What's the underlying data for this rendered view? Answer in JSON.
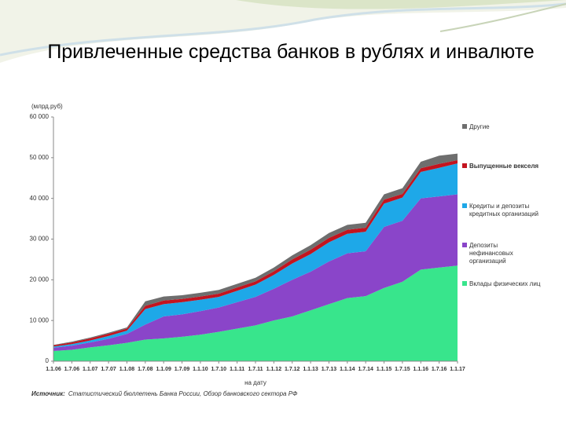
{
  "chart_data": {
    "type": "stacked-area",
    "title": "Привлеченные средства банков в рублях и инвалюте",
    "y_unit": "(млрд.руб)",
    "x_label": "на дату",
    "source_label": "Источник:",
    "source": "Статистический бюллетень Банка России, Обзор банковского сектора РФ",
    "categories": [
      "1.1.06",
      "1.7.06",
      "1.1.07",
      "1.7.07",
      "1.1.08",
      "1.7.08",
      "1.1.09",
      "1.7.09",
      "1.1.10",
      "1.7.10",
      "1.1.11",
      "1.7.11",
      "1.1.12",
      "1.7.12",
      "1.1.13",
      "1.7.13",
      "1.1.14",
      "1.7.14",
      "1.1.15",
      "1.7.15",
      "1.1.16",
      "1.7.16",
      "1.1.17"
    ],
    "ylim": [
      0,
      60000
    ],
    "yticks": [
      0,
      {
        "value": 10000,
        "label": "10 000"
      },
      {
        "value": 20000,
        "label": "20 000"
      },
      {
        "value": 30000,
        "label": "30 000"
      },
      {
        "value": 40000,
        "label": "40 000"
      },
      {
        "value": 50000,
        "label": "50 000"
      },
      {
        "value": 60000,
        "label": "60 000"
      }
    ],
    "series": [
      {
        "name": "Вклады физических лиц",
        "color": "#38e58c",
        "values": [
          2500,
          2800,
          3400,
          3900,
          4500,
          5300,
          5600,
          6000,
          6500,
          7200,
          8000,
          8800,
          10000,
          11000,
          12500,
          14000,
          15500,
          16000,
          18000,
          19500,
          22500,
          23000,
          23500
        ]
      },
      {
        "name": "Депозиты нефинансовых организаций",
        "color": "#8a45c9",
        "values": [
          800,
          1000,
          1200,
          1600,
          2200,
          3700,
          5400,
          5500,
          5800,
          6000,
          6500,
          7000,
          7800,
          9000,
          9500,
          10500,
          11000,
          11000,
          15000,
          15000,
          17500,
          17500,
          17500
        ]
      },
      {
        "name": "Кредиты и депозиты кредитных организаций",
        "color": "#1ea8e8",
        "values": [
          300,
          400,
          500,
          700,
          800,
          3800,
          3000,
          3000,
          2800,
          2600,
          2800,
          3000,
          3400,
          4000,
          4300,
          4700,
          4800,
          4800,
          5700,
          5700,
          6500,
          7000,
          7600
        ]
      },
      {
        "name": "Выпущенные векселя",
        "color": "#c3141f",
        "values": [
          300,
          400,
          500,
          550,
          500,
          800,
          900,
          800,
          800,
          800,
          800,
          800,
          900,
          1000,
          1100,
          1100,
          1000,
          1000,
          1000,
          900,
          900,
          1000,
          800
        ]
      },
      {
        "name": "Другие",
        "color": "#6e6e6e",
        "values": [
          100,
          200,
          200,
          250,
          300,
          1100,
          1000,
          900,
          900,
          900,
          900,
          900,
          900,
          1000,
          1100,
          1200,
          1200,
          1200,
          1300,
          1400,
          1600,
          2000,
          1600
        ]
      }
    ],
    "grid": false
  }
}
